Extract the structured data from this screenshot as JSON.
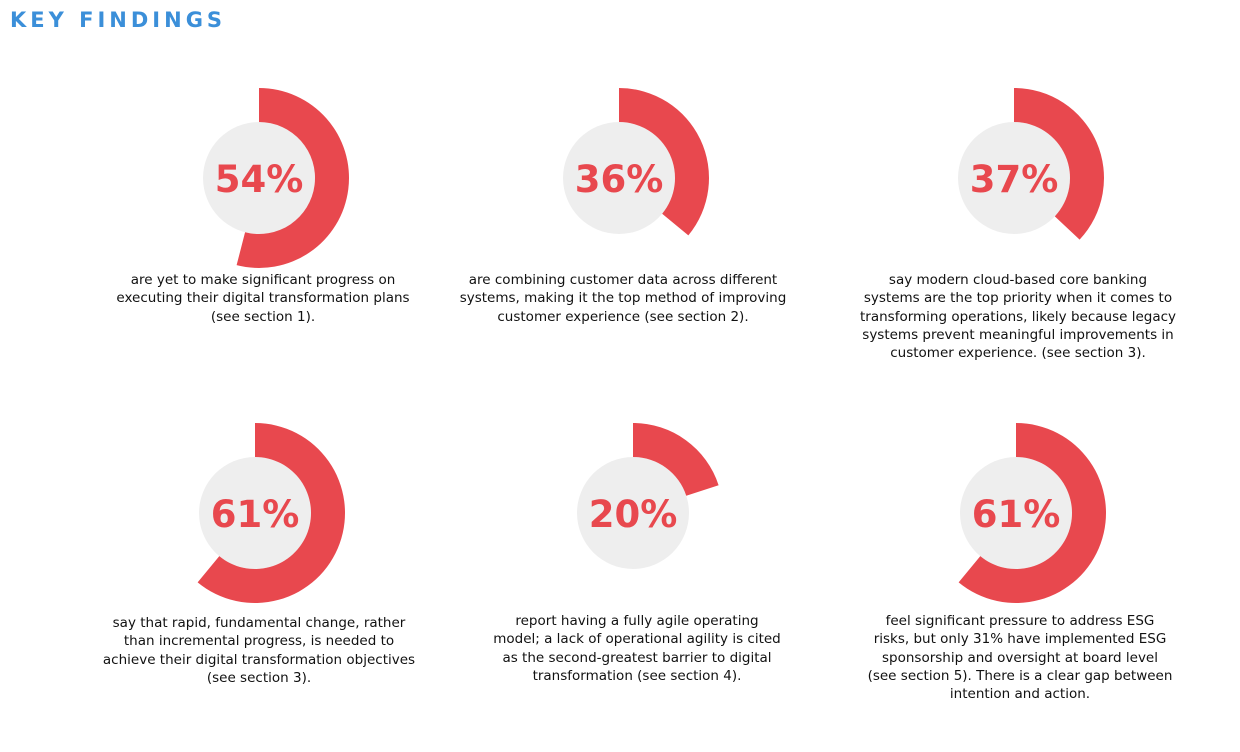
{
  "header": {
    "title": "KEY FINDINGS"
  },
  "colors": {
    "title": "#3b8fd9",
    "accent": "#e8484e",
    "disc": "#eeeeee"
  },
  "chart_data": [
    {
      "type": "pie",
      "values": [
        54
      ],
      "label": "54%",
      "description": [
        "are yet to make significant progress on",
        "executing their digital transformation plans",
        "(see section 1)."
      ]
    },
    {
      "type": "pie",
      "values": [
        36
      ],
      "label": "36%",
      "description": [
        "are combining customer data across different",
        "systems, making it the top method of improving",
        "customer experience (see section 2)."
      ]
    },
    {
      "type": "pie",
      "values": [
        37
      ],
      "label": "37%",
      "description": [
        "say modern cloud-based core banking",
        "systems are the top priority when it comes to",
        "transforming operations, likely because legacy",
        "systems prevent meaningful improvements in",
        "customer experience. (see section 3)."
      ]
    },
    {
      "type": "pie",
      "values": [
        61
      ],
      "label": "61%",
      "description": [
        "say that rapid, fundamental change, rather",
        "than incremental progress, is needed to",
        "achieve their digital transformation objectives",
        "(see section 3)."
      ]
    },
    {
      "type": "pie",
      "values": [
        20
      ],
      "label": "20%",
      "description": [
        "report having a fully agile operating",
        "model; a lack of operational agility is cited",
        "as the second-greatest barrier to digital",
        "transformation (see section 4)."
      ]
    },
    {
      "type": "pie",
      "values": [
        61
      ],
      "label": "61%",
      "description": [
        "feel significant pressure to address ESG",
        "risks, but only 31% have implemented ESG",
        "sponsorship and oversight at board level",
        "(see section 5). There is a clear gap between",
        "intention and action."
      ]
    }
  ]
}
